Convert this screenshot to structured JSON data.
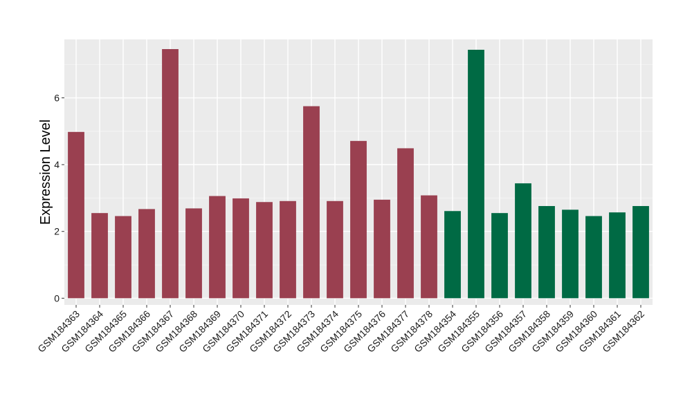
{
  "chart_data": {
    "type": "bar",
    "title": "",
    "xlabel": "",
    "ylabel": "Expression Level",
    "ylim": [
      -0.2,
      7.75
    ],
    "yticks": [
      0,
      2,
      4,
      6
    ],
    "grid": true,
    "legend": "none",
    "colors": {
      "group_a": "#9a4050",
      "group_b": "#006a44",
      "panel_background": "#ebebeb",
      "grid_major": "#ffffff",
      "grid_minor": "#f5f5f5"
    },
    "categories": [
      "GSM184363",
      "GSM184364",
      "GSM184365",
      "GSM184366",
      "GSM184367",
      "GSM184368",
      "GSM184369",
      "GSM184370",
      "GSM184371",
      "GSM184372",
      "GSM184373",
      "GSM184374",
      "GSM184375",
      "GSM184376",
      "GSM184377",
      "GSM184378",
      "GSM184354",
      "GSM184355",
      "GSM184356",
      "GSM184357",
      "GSM184358",
      "GSM184359",
      "GSM184360",
      "GSM184361",
      "GSM184362"
    ],
    "values": [
      4.98,
      2.55,
      2.46,
      2.67,
      7.46,
      2.69,
      3.06,
      2.99,
      2.88,
      2.91,
      5.75,
      2.91,
      4.71,
      2.95,
      4.49,
      3.08,
      2.61,
      7.44,
      2.55,
      3.44,
      2.76,
      2.65,
      2.46,
      2.57,
      2.76
    ],
    "groups": [
      "a",
      "a",
      "a",
      "a",
      "a",
      "a",
      "a",
      "a",
      "a",
      "a",
      "a",
      "a",
      "a",
      "a",
      "a",
      "a",
      "b",
      "b",
      "b",
      "b",
      "b",
      "b",
      "b",
      "b",
      "b"
    ]
  }
}
